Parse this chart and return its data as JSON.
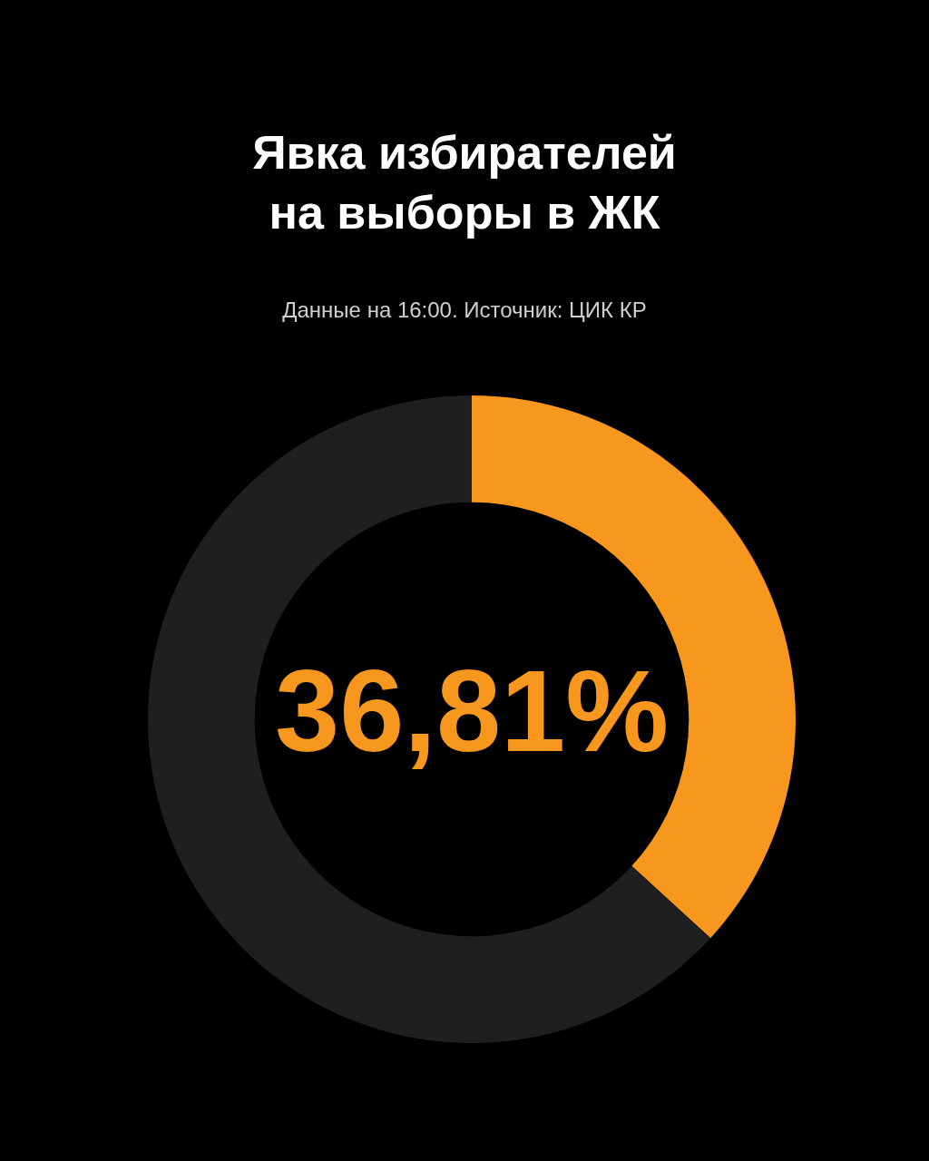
{
  "chart_data": {
    "type": "donut",
    "title": "Явка избирателей на выборы в ЖК",
    "subtitle": "Данные на 16:00. Источник: ЦИК КР",
    "categories": [
      null,
      null
    ],
    "values": [
      36.81,
      63.19
    ],
    "colors": [
      "#f7971e",
      "#1f1f1f"
    ],
    "value_labels": [
      "36,81%",
      null
    ],
    "legend": false
  }
}
